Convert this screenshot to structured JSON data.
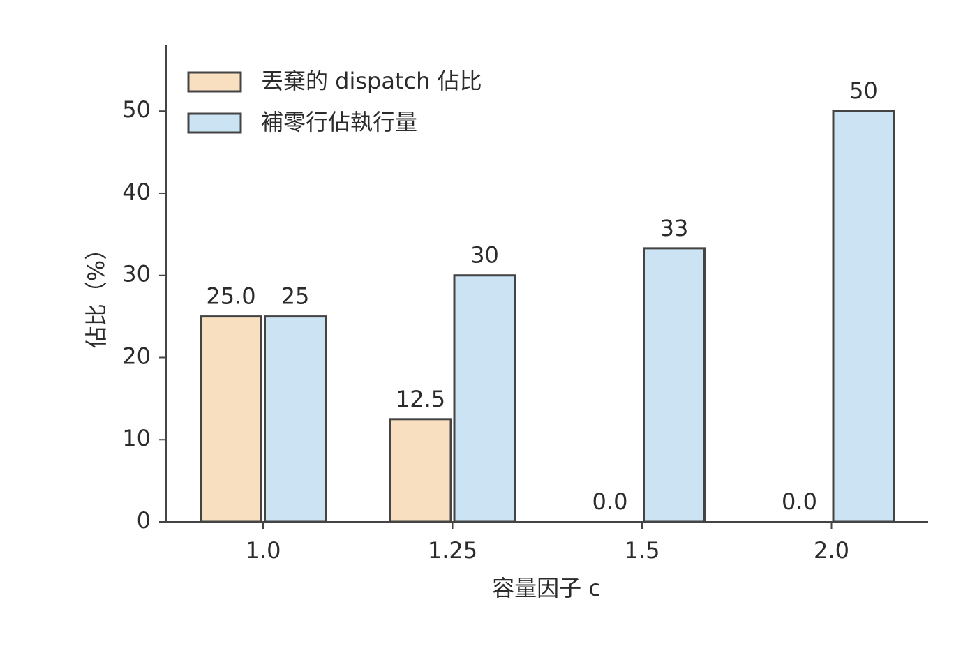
{
  "chart_data": {
    "type": "bar",
    "xlabel": "容量因子 c",
    "ylabel": "佔比（%）",
    "categories": [
      "1.0",
      "1.25",
      "1.5",
      "2.0"
    ],
    "series": [
      {
        "name": "丟棄的 dispatch 佔比",
        "color": "#f7dfc0",
        "values": [
          25.0,
          12.5,
          0.0,
          0.0
        ],
        "value_labels": [
          "25.0",
          "12.5",
          "0.0",
          "0.0"
        ]
      },
      {
        "name": "補零行佔執行量",
        "color": "#cce3f3",
        "values": [
          25,
          30,
          33.3,
          50
        ],
        "value_labels": [
          "25",
          "30",
          "33",
          "50"
        ]
      }
    ],
    "ylim": [
      0,
      58
    ],
    "yticks": [
      0,
      10,
      20,
      30,
      40,
      50
    ],
    "legend": "upper left"
  }
}
